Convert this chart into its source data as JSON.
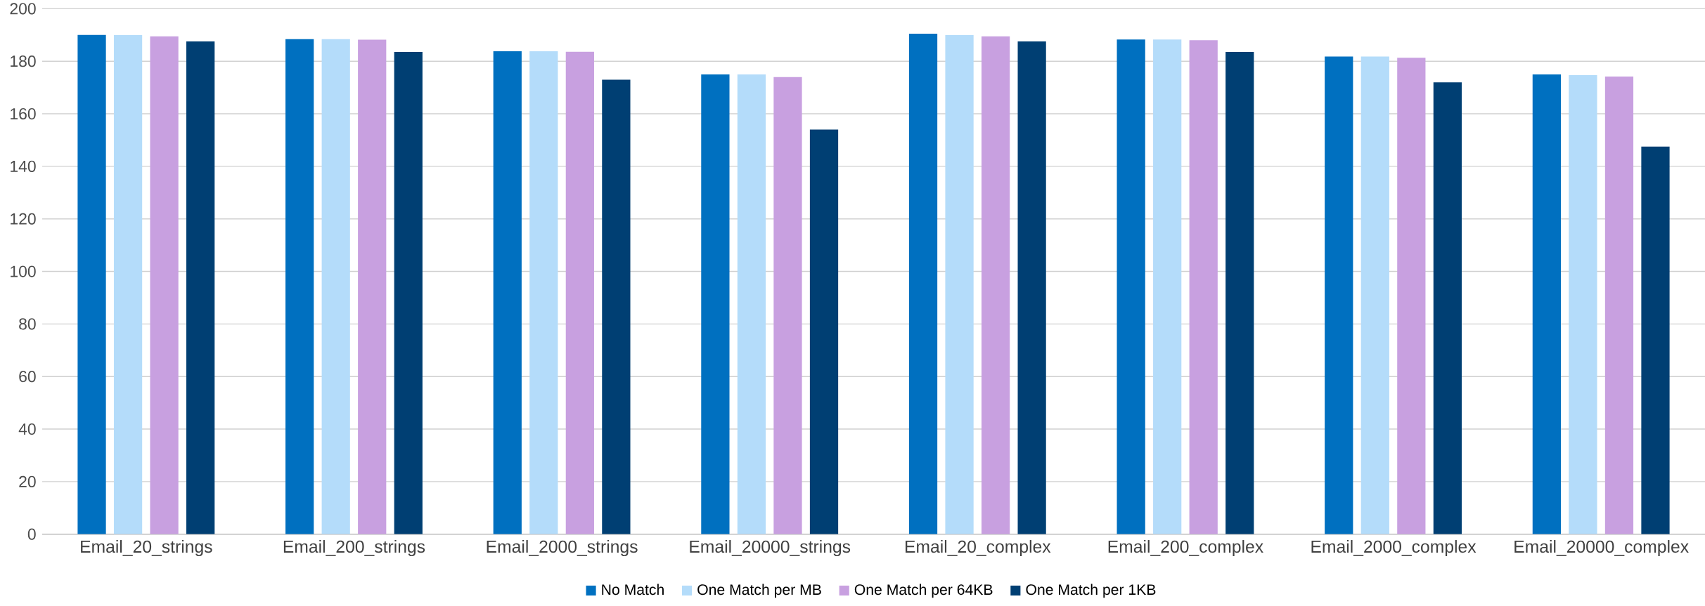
{
  "chart_data": {
    "type": "bar",
    "categories": [
      "Email_20_strings",
      "Email_200_strings",
      "Email_2000_strings",
      "Email_20000_strings",
      "Email_20_complex",
      "Email_200_complex",
      "Email_2000_complex",
      "Email_20000_complex"
    ],
    "series": [
      {
        "name": "No Match",
        "color": "#0070c0",
        "values": [
          190,
          188.4,
          183.8,
          175,
          190.5,
          188.3,
          181.8,
          175
        ]
      },
      {
        "name": "One Match per MB",
        "color": "#b4dcfa",
        "values": [
          190,
          188.4,
          183.8,
          175,
          190,
          188.3,
          181.8,
          174.7
        ]
      },
      {
        "name": "One Match per 64KB",
        "color": "#c8a0e0",
        "values": [
          189.5,
          188.2,
          183.6,
          174,
          189.5,
          188,
          181.3,
          174.2
        ]
      },
      {
        "name": "One Match per 1KB",
        "color": "#003f73",
        "values": [
          187.5,
          183.5,
          173,
          154,
          187.5,
          183.5,
          172,
          147.5
        ]
      }
    ],
    "ylim": [
      0,
      200
    ],
    "yticks": [
      0,
      20,
      40,
      60,
      80,
      100,
      120,
      140,
      160,
      180,
      200
    ],
    "grid": "y",
    "legend": "bottom"
  }
}
